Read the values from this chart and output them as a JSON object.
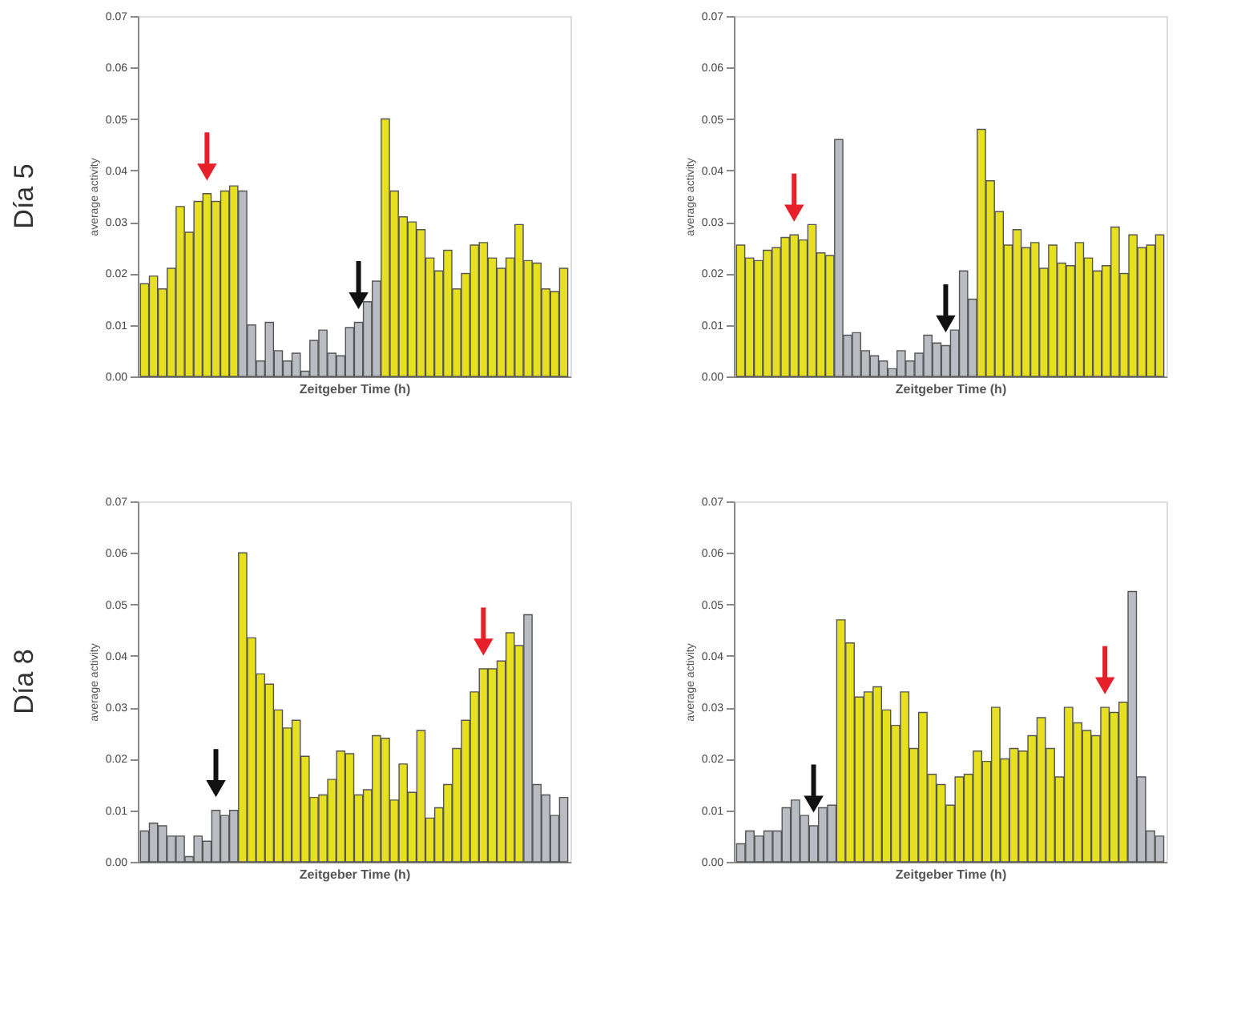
{
  "chart_data": [
    {
      "type": "bar",
      "grid": false,
      "title": "Día 5",
      "xlabel": "Zeitgeber Time (h)",
      "ylabel": "average activity",
      "ylim": [
        0,
        0.07
      ],
      "yticks": [
        {
          "value": 0,
          "label": "0.00"
        },
        {
          "value": 0.01,
          "label": "0.01"
        },
        {
          "value": 0.02,
          "label": "0.02"
        },
        {
          "value": 0.03,
          "label": "0.03"
        },
        {
          "value": 0.04,
          "label": "0.04"
        },
        {
          "value": 0.05,
          "label": "0.05"
        },
        {
          "value": 0.06,
          "label": "0.06"
        },
        {
          "value": 0.07,
          "label": "0.07"
        }
      ],
      "tick_labels": "y",
      "categories": [
        null,
        null,
        null,
        null,
        null,
        null,
        null,
        null,
        null,
        null,
        null,
        null,
        null,
        null,
        null,
        null,
        null,
        null,
        null,
        null,
        null,
        null,
        null,
        null,
        null,
        null,
        null,
        null,
        null,
        null,
        null,
        null,
        null,
        null,
        null,
        null,
        null,
        null,
        null,
        null,
        null,
        null,
        null,
        null,
        null,
        null,
        null,
        null
      ],
      "values": [
        0.018,
        0.0195,
        0.017,
        0.021,
        0.033,
        0.028,
        0.034,
        0.0355,
        0.034,
        0.036,
        0.037,
        0.036,
        0.01,
        0.003,
        0.0105,
        0.005,
        0.003,
        0.0045,
        0.001,
        0.007,
        0.009,
        0.0045,
        0.004,
        0.0095,
        0.0105,
        0.0145,
        0.0185,
        0.05,
        0.036,
        0.031,
        0.03,
        0.0285,
        0.023,
        0.0205,
        0.0245,
        0.017,
        0.02,
        0.0255,
        0.026,
        0.023,
        0.021,
        0.023,
        0.0295,
        0.0225,
        0.022,
        0.017,
        0.0165,
        0.021
      ],
      "colors": [
        "#e6e020",
        "#e6e020",
        "#e6e020",
        "#e6e020",
        "#e6e020",
        "#e6e020",
        "#e6e020",
        "#e6e020",
        "#e6e020",
        "#e6e020",
        "#e6e020",
        "#b9bcc2",
        "#b9bcc2",
        "#b9bcc2",
        "#b9bcc2",
        "#b9bcc2",
        "#b9bcc2",
        "#b9bcc2",
        "#b9bcc2",
        "#b9bcc2",
        "#b9bcc2",
        "#b9bcc2",
        "#b9bcc2",
        "#b9bcc2",
        "#b9bcc2",
        "#b9bcc2",
        "#b9bcc2",
        "#e6e020",
        "#e6e020",
        "#e6e020",
        "#e6e020",
        "#e6e020",
        "#e6e020",
        "#e6e020",
        "#e6e020",
        "#e6e020",
        "#e6e020",
        "#e6e020",
        "#e6e020",
        "#e6e020",
        "#e6e020",
        "#e6e020",
        "#e6e020",
        "#e6e020",
        "#e6e020",
        "#e6e020",
        "#e6e020",
        "#e6e020"
      ]
    },
    {
      "type": "bar",
      "grid": false,
      "xlabel": "Zeitgeber Time (h)",
      "ylabel": "average activity",
      "ylim": [
        0,
        0.07
      ],
      "yticks": [
        {
          "value": 0,
          "label": "0.00"
        },
        {
          "value": 0.01,
          "label": "0.01"
        },
        {
          "value": 0.02,
          "label": "0.02"
        },
        {
          "value": 0.03,
          "label": "0.03"
        },
        {
          "value": 0.04,
          "label": "0.04"
        },
        {
          "value": 0.05,
          "label": "0.05"
        },
        {
          "value": 0.06,
          "label": "0.06"
        },
        {
          "value": 0.07,
          "label": "0.07"
        }
      ],
      "tick_labels": "y",
      "categories": [
        null,
        null,
        null,
        null,
        null,
        null,
        null,
        null,
        null,
        null,
        null,
        null,
        null,
        null,
        null,
        null,
        null,
        null,
        null,
        null,
        null,
        null,
        null,
        null,
        null,
        null,
        null,
        null,
        null,
        null,
        null,
        null,
        null,
        null,
        null,
        null,
        null,
        null,
        null,
        null,
        null,
        null,
        null,
        null,
        null,
        null,
        null,
        null
      ],
      "values": [
        0.0255,
        0.023,
        0.0225,
        0.0245,
        0.025,
        0.027,
        0.0275,
        0.0265,
        0.0295,
        0.024,
        0.0235,
        0.046,
        0.008,
        0.0085,
        0.005,
        0.004,
        0.003,
        0.0015,
        0.005,
        0.003,
        0.0045,
        0.008,
        0.0065,
        0.006,
        0.009,
        0.0205,
        0.015,
        0.048,
        0.038,
        0.032,
        0.0255,
        0.0285,
        0.025,
        0.026,
        0.021,
        0.0255,
        0.022,
        0.0215,
        0.026,
        0.023,
        0.0205,
        0.0215,
        0.029,
        0.02,
        0.0275,
        0.025,
        0.0255,
        0.0275
      ],
      "colors": [
        "#e6e020",
        "#e6e020",
        "#e6e020",
        "#e6e020",
        "#e6e020",
        "#e6e020",
        "#e6e020",
        "#e6e020",
        "#e6e020",
        "#e6e020",
        "#e6e020",
        "#b9bcc2",
        "#b9bcc2",
        "#b9bcc2",
        "#b9bcc2",
        "#b9bcc2",
        "#b9bcc2",
        "#b9bcc2",
        "#b9bcc2",
        "#b9bcc2",
        "#b9bcc2",
        "#b9bcc2",
        "#b9bcc2",
        "#b9bcc2",
        "#b9bcc2",
        "#b9bcc2",
        "#b9bcc2",
        "#e6e020",
        "#e6e020",
        "#e6e020",
        "#e6e020",
        "#e6e020",
        "#e6e020",
        "#e6e020",
        "#e6e020",
        "#e6e020",
        "#e6e020",
        "#e6e020",
        "#e6e020",
        "#e6e020",
        "#e6e020",
        "#e6e020",
        "#e6e020",
        "#e6e020",
        "#e6e020",
        "#e6e020",
        "#e6e020",
        "#e6e020"
      ]
    },
    {
      "type": "bar",
      "grid": false,
      "title": "Día 8",
      "xlabel": "Zeitgeber Time (h)",
      "ylabel": "average activity",
      "ylim": [
        0,
        0.07
      ],
      "yticks": [
        {
          "value": 0,
          "label": "0.00"
        },
        {
          "value": 0.01,
          "label": "0.01"
        },
        {
          "value": 0.02,
          "label": "0.02"
        },
        {
          "value": 0.03,
          "label": "0.03"
        },
        {
          "value": 0.04,
          "label": "0.04"
        },
        {
          "value": 0.05,
          "label": "0.05"
        },
        {
          "value": 0.06,
          "label": "0.06"
        },
        {
          "value": 0.07,
          "label": "0.07"
        }
      ],
      "tick_labels": "y",
      "categories": [
        null,
        null,
        null,
        null,
        null,
        null,
        null,
        null,
        null,
        null,
        null,
        null,
        null,
        null,
        null,
        null,
        null,
        null,
        null,
        null,
        null,
        null,
        null,
        null,
        null,
        null,
        null,
        null,
        null,
        null,
        null,
        null,
        null,
        null,
        null,
        null,
        null,
        null,
        null,
        null,
        null,
        null,
        null,
        null,
        null,
        null,
        null,
        null
      ],
      "values": [
        0.006,
        0.0075,
        0.007,
        0.005,
        0.005,
        0.001,
        0.005,
        0.004,
        0.01,
        0.009,
        0.01,
        0.06,
        0.0435,
        0.0365,
        0.0345,
        0.0295,
        0.026,
        0.0275,
        0.0205,
        0.0125,
        0.013,
        0.016,
        0.0215,
        0.021,
        0.013,
        0.014,
        0.0245,
        0.024,
        0.012,
        0.019,
        0.0135,
        0.0255,
        0.0085,
        0.0105,
        0.015,
        0.022,
        0.0275,
        0.033,
        0.0375,
        0.0375,
        0.039,
        0.0445,
        0.042,
        0.048,
        0.015,
        0.013,
        0.009,
        0.0125
      ],
      "colors": [
        "#b9bcc2",
        "#b9bcc2",
        "#b9bcc2",
        "#b9bcc2",
        "#b9bcc2",
        "#b9bcc2",
        "#b9bcc2",
        "#b9bcc2",
        "#b9bcc2",
        "#b9bcc2",
        "#b9bcc2",
        "#e6e020",
        "#e6e020",
        "#e6e020",
        "#e6e020",
        "#e6e020",
        "#e6e020",
        "#e6e020",
        "#e6e020",
        "#e6e020",
        "#e6e020",
        "#e6e020",
        "#e6e020",
        "#e6e020",
        "#e6e020",
        "#e6e020",
        "#e6e020",
        "#e6e020",
        "#e6e020",
        "#e6e020",
        "#e6e020",
        "#e6e020",
        "#e6e020",
        "#e6e020",
        "#e6e020",
        "#e6e020",
        "#e6e020",
        "#e6e020",
        "#e6e020",
        "#e6e020",
        "#e6e020",
        "#e6e020",
        "#e6e020",
        "#b9bcc2",
        "#b9bcc2",
        "#b9bcc2",
        "#b9bcc2",
        "#b9bcc2"
      ]
    },
    {
      "type": "bar",
      "grid": false,
      "xlabel": "Zeitgeber Time (h)",
      "ylabel": "average activity",
      "ylim": [
        0,
        0.07
      ],
      "yticks": [
        {
          "value": 0,
          "label": "0.00"
        },
        {
          "value": 0.01,
          "label": "0.01"
        },
        {
          "value": 0.02,
          "label": "0.02"
        },
        {
          "value": 0.03,
          "label": "0.03"
        },
        {
          "value": 0.04,
          "label": "0.04"
        },
        {
          "value": 0.05,
          "label": "0.05"
        },
        {
          "value": 0.06,
          "label": "0.06"
        },
        {
          "value": 0.07,
          "label": "0.07"
        }
      ],
      "tick_labels": "y",
      "categories": [
        null,
        null,
        null,
        null,
        null,
        null,
        null,
        null,
        null,
        null,
        null,
        null,
        null,
        null,
        null,
        null,
        null,
        null,
        null,
        null,
        null,
        null,
        null,
        null,
        null,
        null,
        null,
        null,
        null,
        null,
        null,
        null,
        null,
        null,
        null,
        null,
        null,
        null,
        null,
        null,
        null,
        null,
        null,
        null,
        null,
        null,
        null
      ],
      "values": [
        0.0035,
        0.006,
        0.005,
        0.006,
        0.006,
        0.0105,
        0.012,
        0.009,
        0.007,
        0.0105,
        0.011,
        0.047,
        0.0425,
        0.032,
        0.033,
        0.034,
        0.0295,
        0.0265,
        0.033,
        0.022,
        0.029,
        0.017,
        0.015,
        0.011,
        0.0165,
        0.017,
        0.0215,
        0.0195,
        0.03,
        0.02,
        0.022,
        0.0215,
        0.0245,
        0.028,
        0.022,
        0.0165,
        0.03,
        0.027,
        0.0255,
        0.0245,
        0.03,
        0.029,
        0.031,
        0.0525,
        0.0165,
        0.006,
        0.005
      ],
      "colors": [
        "#b9bcc2",
        "#b9bcc2",
        "#b9bcc2",
        "#b9bcc2",
        "#b9bcc2",
        "#b9bcc2",
        "#b9bcc2",
        "#b9bcc2",
        "#b9bcc2",
        "#b9bcc2",
        "#b9bcc2",
        "#e6e020",
        "#e6e020",
        "#e6e020",
        "#e6e020",
        "#e6e020",
        "#e6e020",
        "#e6e020",
        "#e6e020",
        "#e6e020",
        "#e6e020",
        "#e6e020",
        "#e6e020",
        "#e6e020",
        "#e6e020",
        "#e6e020",
        "#e6e020",
        "#e6e020",
        "#e6e020",
        "#e6e020",
        "#e6e020",
        "#e6e020",
        "#e6e020",
        "#e6e020",
        "#e6e020",
        "#e6e020",
        "#e6e020",
        "#e6e020",
        "#e6e020",
        "#e6e020",
        "#e6e020",
        "#e6e020",
        "#e6e020",
        "#b9bcc2",
        "#b9bcc2",
        "#b9bcc2",
        "#b9bcc2"
      ]
    }
  ]
}
